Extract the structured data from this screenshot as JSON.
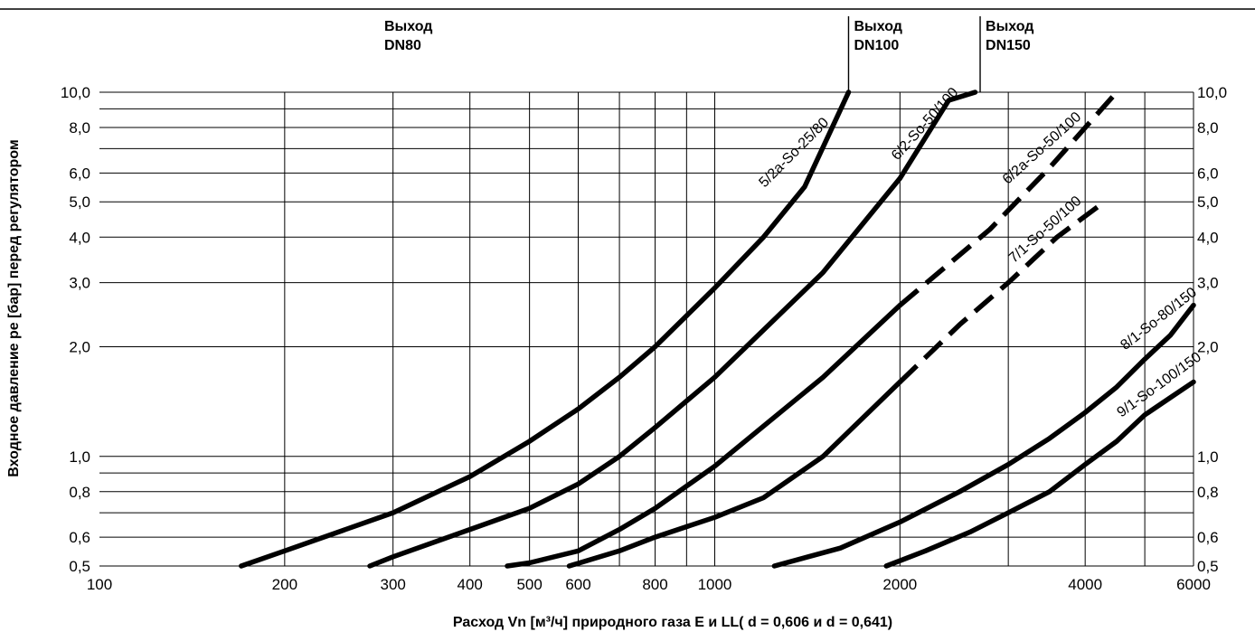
{
  "chart_data": {
    "type": "line",
    "x_scale": "log",
    "y_scale": "log",
    "xlim": [
      100,
      6000
    ],
    "ylim": [
      0.5,
      10.0
    ],
    "grid": true,
    "xlabel": "Расход Vn [м³/ч] природного газа E и LL( d = 0,606 и d = 0,641)",
    "ylabel": "Входное давление pe [бар] перед регулятором",
    "x_ticks": [
      {
        "value": 100,
        "label": "100"
      },
      {
        "value": 200,
        "label": "200"
      },
      {
        "value": 300,
        "label": "300"
      },
      {
        "value": 400,
        "label": "400"
      },
      {
        "value": 500,
        "label": "500"
      },
      {
        "value": 600,
        "label": "600"
      },
      {
        "value": 800,
        "label": "800"
      },
      {
        "value": 1000,
        "label": "1000"
      },
      {
        "value": 2000,
        "label": "2000"
      },
      {
        "value": 4000,
        "label": "4000"
      },
      {
        "value": 6000,
        "label": "6000"
      }
    ],
    "x_grid": [
      200,
      300,
      400,
      500,
      600,
      700,
      800,
      900,
      1000,
      2000,
      3000,
      4000,
      5000,
      6000
    ],
    "y_ticks": [
      {
        "value": 0.5,
        "label": "0,5"
      },
      {
        "value": 0.6,
        "label": "0,6"
      },
      {
        "value": 0.8,
        "label": "0,8"
      },
      {
        "value": 1.0,
        "label": "1,0"
      },
      {
        "value": 2.0,
        "label": "2,0"
      },
      {
        "value": 3.0,
        "label": "3,0"
      },
      {
        "value": 4.0,
        "label": "4,0"
      },
      {
        "value": 5.0,
        "label": "5,0"
      },
      {
        "value": 6.0,
        "label": "6,0"
      },
      {
        "value": 8.0,
        "label": "8,0"
      },
      {
        "value": 10.0,
        "label": "10,0"
      }
    ],
    "y_grid": [
      0.5,
      0.6,
      0.7,
      0.8,
      0.9,
      1.0,
      2.0,
      3.0,
      4.0,
      5.0,
      6.0,
      7.0,
      8.0,
      9.0,
      10.0
    ],
    "outlets": [
      {
        "line1": "Выход",
        "line2": "DN80",
        "x": null
      },
      {
        "line1": "Выход",
        "line2": "DN100",
        "x": 1650
      },
      {
        "line1": "Выход",
        "line2": "DN150",
        "x": 2700
      }
    ],
    "series": [
      {
        "name": "5/2a-So-25/80",
        "points": [
          [
            170,
            0.5
          ],
          [
            200,
            0.55
          ],
          [
            300,
            0.7
          ],
          [
            400,
            0.88
          ],
          [
            500,
            1.1
          ],
          [
            600,
            1.35
          ],
          [
            700,
            1.65
          ],
          [
            800,
            2.0
          ],
          [
            1000,
            2.9
          ],
          [
            1200,
            4.0
          ],
          [
            1400,
            5.5
          ],
          [
            1650,
            10.0
          ]
        ],
        "dashed_from": null
      },
      {
        "name": "6/2-So-50/100",
        "points": [
          [
            275,
            0.5
          ],
          [
            300,
            0.53
          ],
          [
            400,
            0.63
          ],
          [
            500,
            0.72
          ],
          [
            600,
            0.84
          ],
          [
            700,
            1.0
          ],
          [
            800,
            1.2
          ],
          [
            1000,
            1.65
          ],
          [
            1500,
            3.2
          ],
          [
            2000,
            5.8
          ],
          [
            2400,
            9.5
          ],
          [
            2650,
            10.0
          ]
        ],
        "dashed_from": null
      },
      {
        "name": "6/2a-So-50/100",
        "points": [
          [
            460,
            0.5
          ],
          [
            500,
            0.51
          ],
          [
            600,
            0.55
          ],
          [
            700,
            0.63
          ],
          [
            800,
            0.72
          ],
          [
            1000,
            0.94
          ],
          [
            1500,
            1.65
          ],
          [
            2000,
            2.6
          ],
          [
            2800,
            4.2
          ],
          [
            3500,
            6.2
          ],
          [
            4500,
            10.0
          ]
        ],
        "dashed_from": 2750
      },
      {
        "name": "7/1-So-50/100",
        "points": [
          [
            580,
            0.5
          ],
          [
            700,
            0.55
          ],
          [
            800,
            0.6
          ],
          [
            1000,
            0.68
          ],
          [
            1200,
            0.77
          ],
          [
            1500,
            1.0
          ],
          [
            2000,
            1.6
          ],
          [
            2500,
            2.3
          ],
          [
            3000,
            3.0
          ],
          [
            3600,
            4.0
          ],
          [
            4300,
            5.0
          ]
        ],
        "dashed_from": 2000
      },
      {
        "name": "8/1-So-80/150",
        "points": [
          [
            1250,
            0.5
          ],
          [
            1600,
            0.56
          ],
          [
            2000,
            0.66
          ],
          [
            2500,
            0.8
          ],
          [
            3000,
            0.95
          ],
          [
            3500,
            1.12
          ],
          [
            4000,
            1.32
          ],
          [
            4500,
            1.55
          ],
          [
            5000,
            1.85
          ],
          [
            5500,
            2.15
          ],
          [
            6000,
            2.6
          ]
        ],
        "dashed_from": null
      },
      {
        "name": "9/1-So-100/150",
        "points": [
          [
            1900,
            0.5
          ],
          [
            2200,
            0.55
          ],
          [
            2600,
            0.62
          ],
          [
            3000,
            0.7
          ],
          [
            3500,
            0.8
          ],
          [
            4000,
            0.95
          ],
          [
            4500,
            1.1
          ],
          [
            5000,
            1.3
          ],
          [
            5500,
            1.45
          ],
          [
            6000,
            1.6
          ]
        ],
        "dashed_from": null
      }
    ]
  },
  "label_angles": [
    -45,
    -48,
    -42,
    -42,
    -38,
    -36
  ]
}
